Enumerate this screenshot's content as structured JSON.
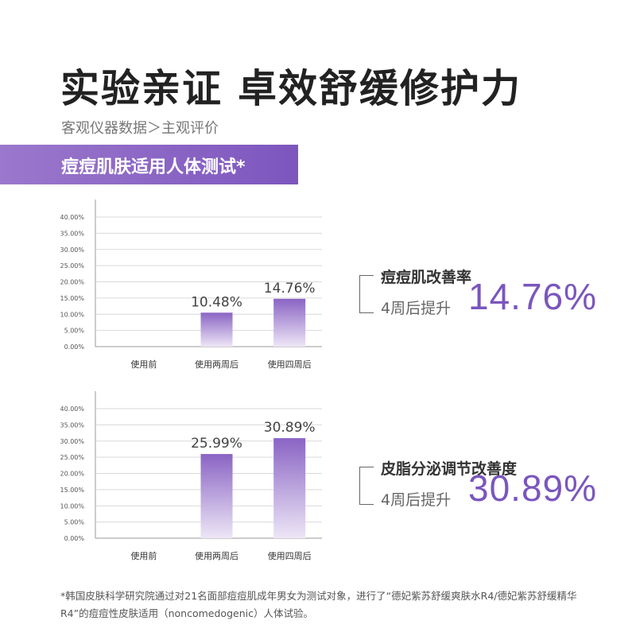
{
  "title": "实验亲证 卓效舒缓修护力",
  "subtitle": "客观仪器数据＞主观评价",
  "banner": "痘痘肌肤适用人体测试*",
  "stats": [
    {
      "title": "痘痘肌改善率",
      "prefix": "4周后提升",
      "value": "14.76%"
    },
    {
      "title": "皮脂分泌调节改善度",
      "prefix": "4周后提升",
      "value": "30.89%"
    }
  ],
  "chart_data": [
    {
      "type": "bar",
      "categories": [
        "使用前",
        "使用两周后",
        "使用四周后"
      ],
      "values": [
        null,
        10.48,
        14.76
      ],
      "data_labels": [
        "",
        "10.48%",
        "14.76%"
      ],
      "ylim": [
        0,
        40
      ],
      "yticks": [
        "0.00%",
        "5.00%",
        "10.00%",
        "15.00%",
        "20.00%",
        "25.00%",
        "30.00%",
        "35.00%",
        "40.00%"
      ],
      "grid": true
    },
    {
      "type": "bar",
      "categories": [
        "使用前",
        "使用两周后",
        "使用四周后"
      ],
      "values": [
        null,
        25.99,
        30.89
      ],
      "data_labels": [
        "",
        "25.99%",
        "30.89%"
      ],
      "ylim": [
        0,
        40
      ],
      "yticks": [
        "0.00%",
        "5.00%",
        "10.00%",
        "15.00%",
        "20.00%",
        "25.00%",
        "30.00%",
        "35.00%",
        "40.00%"
      ],
      "grid": true
    }
  ],
  "colors": {
    "accent": "#7a56be",
    "banner": "#8a64c4",
    "bar_top": "#8a64c4",
    "bar_bottom": "#ede6f6",
    "grid": "#d9d9d9"
  },
  "footnote": "*韩国皮肤科学研究院通过对21名面部痘痘肌成年男女为测试对象，进行了“德妃紫苏舒缓爽肤水R4/德妃紫苏舒缓精华R4”的痘痘性皮肤适用（noncomedogenic）人体试验。"
}
